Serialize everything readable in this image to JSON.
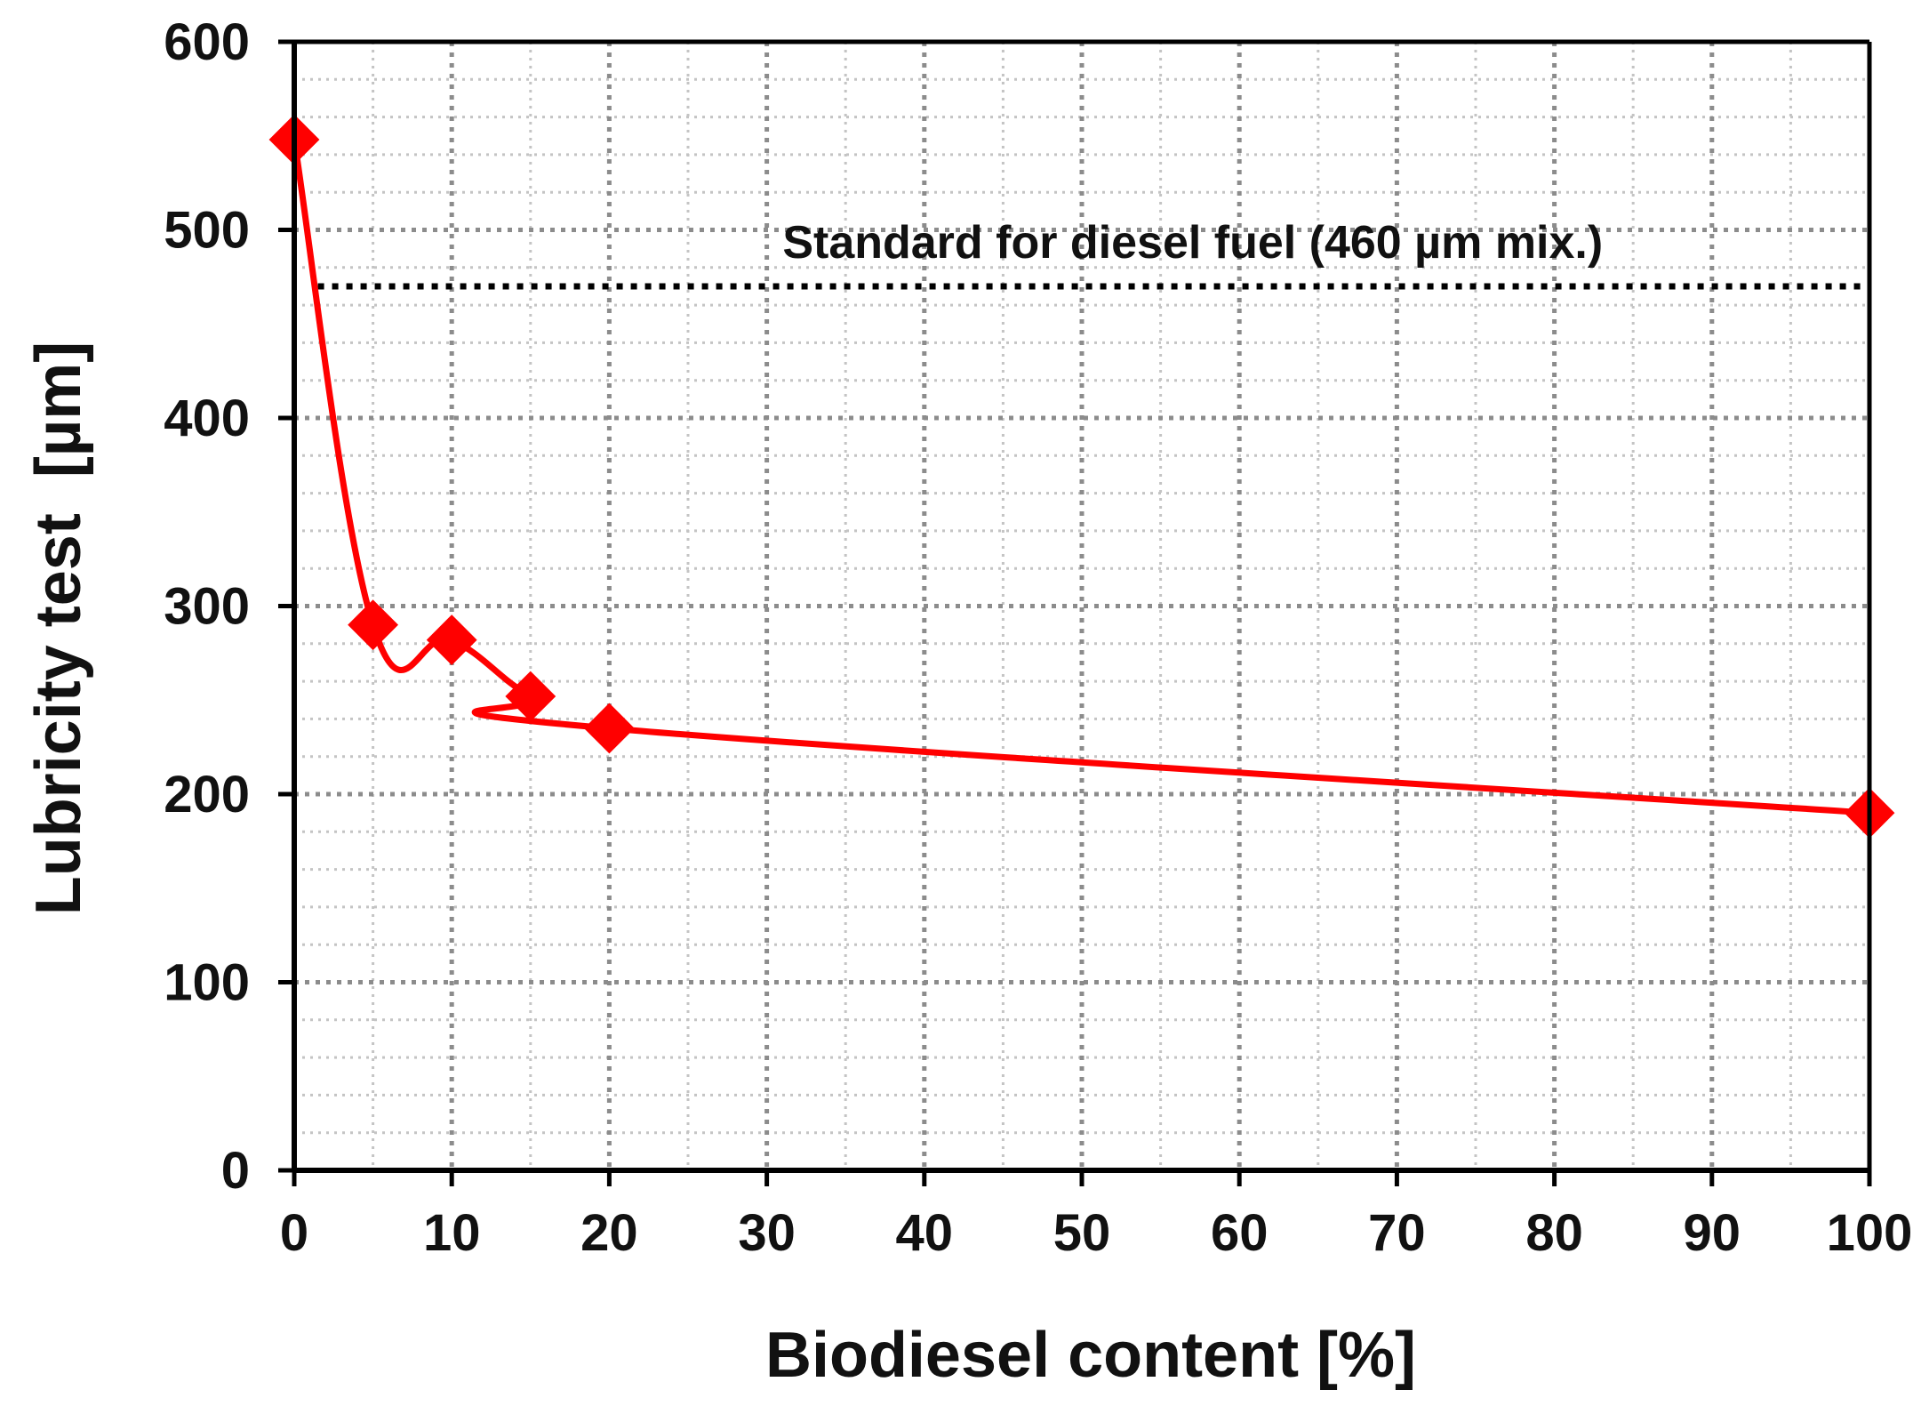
{
  "chart_data": {
    "type": "line",
    "title": "",
    "xlabel": "Biodiesel content [%]",
    "ylabel": "Lubricity test  [µm]",
    "xlim": [
      0,
      100
    ],
    "ylim": [
      0,
      600
    ],
    "x_ticks": [
      0,
      10,
      20,
      30,
      40,
      50,
      60,
      70,
      80,
      90,
      100
    ],
    "y_ticks": [
      0,
      100,
      200,
      300,
      400,
      500,
      600
    ],
    "x_tick_labels": [
      "0",
      "10",
      "20",
      "30",
      "40",
      "50",
      "60",
      "70",
      "80",
      "90",
      "100"
    ],
    "y_tick_labels": [
      "0",
      "100",
      "200",
      "300",
      "400",
      "500",
      "600"
    ],
    "grid": true,
    "grid_style": "dotted",
    "series": [
      {
        "x": [
          0,
          5,
          10,
          15,
          20,
          100
        ],
        "y": [
          548,
          290,
          282,
          252,
          235,
          190
        ],
        "color": "#ff0000",
        "marker": "diamond",
        "smooth": true
      }
    ],
    "reference_line": {
      "y": 470,
      "x_start": 1.5,
      "x_end": 100,
      "style": "dotted",
      "color": "#000000",
      "label": "Standard for diesel fuel (460 µm mix.)"
    }
  }
}
